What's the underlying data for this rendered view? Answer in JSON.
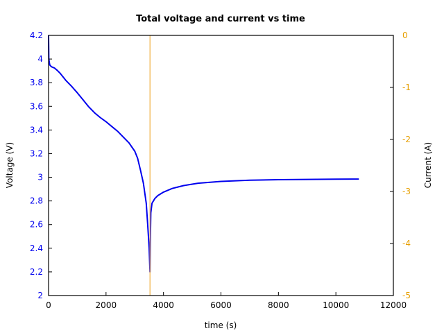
{
  "chart_data": {
    "type": "line",
    "title": "Total voltage and current vs time",
    "xlabel": "time (s)",
    "ylabel": "Voltage (V)",
    "y2label": "Current (A)",
    "xlim": [
      0,
      12000
    ],
    "ylim": [
      2,
      4.2
    ],
    "y2lim": [
      -5,
      0
    ],
    "x_ticks": [
      "0",
      "2000",
      "4000",
      "6000",
      "8000",
      "10000",
      "12000"
    ],
    "y_ticks": [
      "2",
      "2.2",
      "2.4",
      "2.6",
      "2.8",
      "3",
      "3.2",
      "3.4",
      "3.6",
      "3.8",
      "4",
      "4.2"
    ],
    "y2_ticks": [
      "-5",
      "-4",
      "-3",
      "-2",
      "-1",
      "0"
    ],
    "grid": false,
    "legend": null,
    "colors": {
      "voltage": "#0000ee",
      "current": "#f0b040",
      "left_axis": "#0000ee",
      "right_axis": "#e69f00"
    },
    "series": [
      {
        "name": "Voltage",
        "axis": "left",
        "color": "#0000ee",
        "x": [
          0,
          10,
          40,
          100,
          200,
          300,
          400,
          600,
          800,
          1000,
          1200,
          1400,
          1600,
          1800,
          2000,
          2200,
          2400,
          2600,
          2800,
          3000,
          3100,
          3200,
          3300,
          3400,
          3450,
          3500,
          3530,
          3545,
          3560,
          3600,
          3700,
          3800,
          4000,
          4300,
          4700,
          5200,
          6000,
          7000,
          8000,
          9000,
          10000,
          10800
        ],
        "values": [
          4.2,
          4.0,
          3.95,
          3.935,
          3.925,
          3.905,
          3.88,
          3.82,
          3.77,
          3.715,
          3.655,
          3.595,
          3.545,
          3.505,
          3.47,
          3.43,
          3.39,
          3.34,
          3.29,
          3.22,
          3.16,
          3.06,
          2.95,
          2.78,
          2.6,
          2.4,
          2.2,
          2.5,
          2.7,
          2.78,
          2.82,
          2.845,
          2.875,
          2.905,
          2.93,
          2.95,
          2.965,
          2.975,
          2.98,
          2.982,
          2.984,
          2.985
        ]
      },
      {
        "name": "Current",
        "axis": "right",
        "color": "#f0b040",
        "x": [
          3530,
          3530
        ],
        "values": [
          0,
          -5
        ]
      }
    ]
  }
}
